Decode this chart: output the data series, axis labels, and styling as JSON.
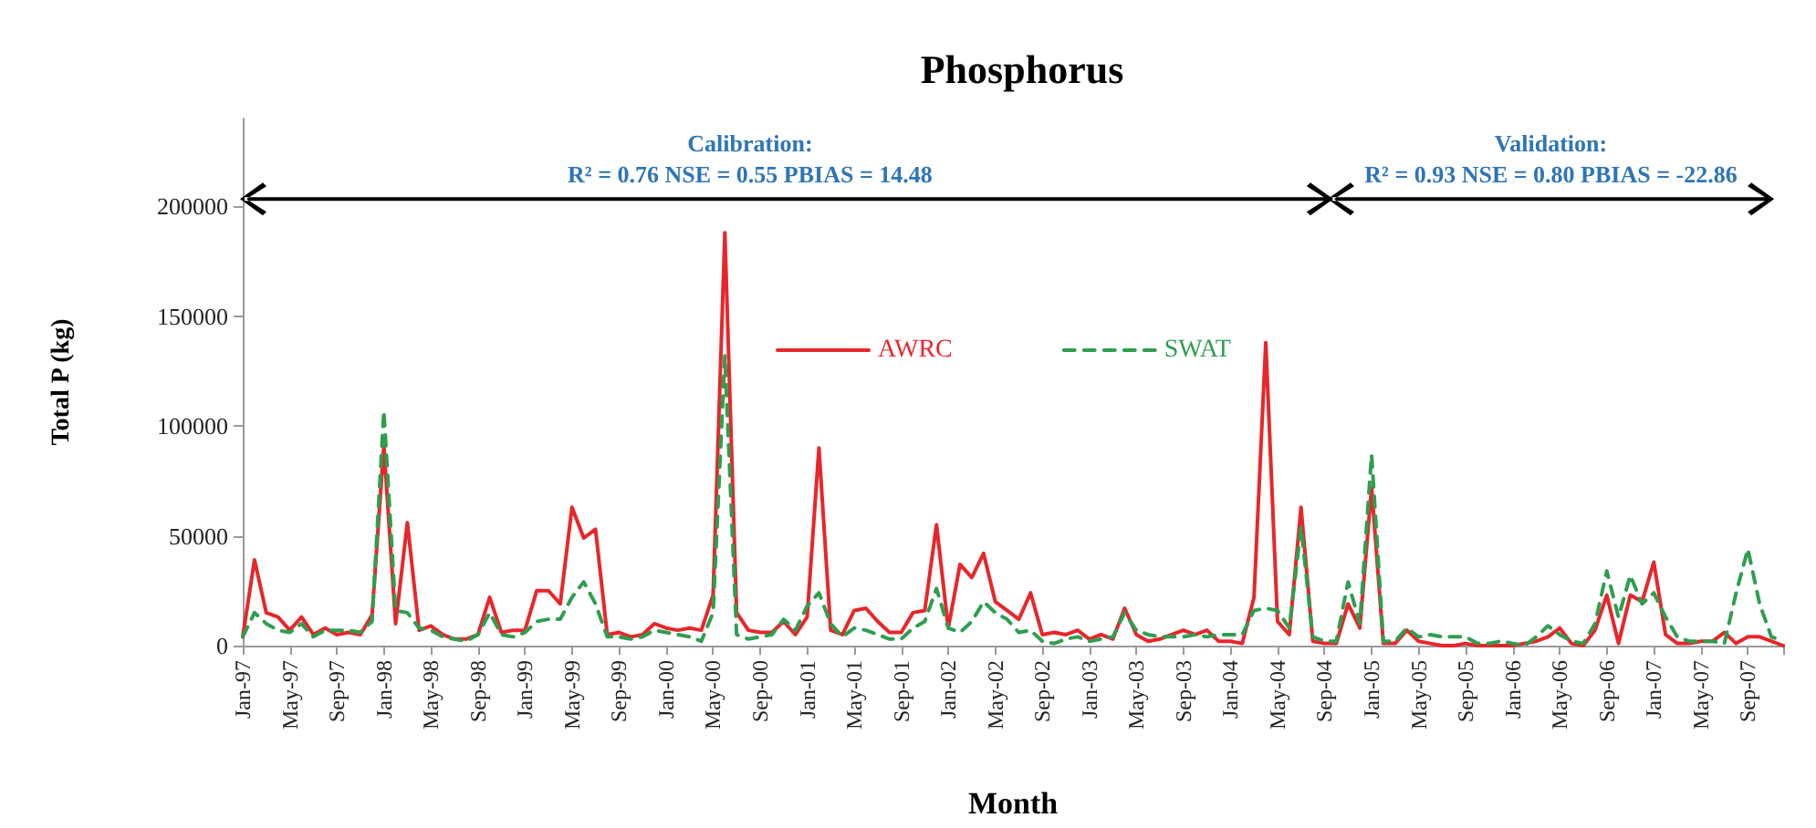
{
  "chart_data": {
    "type": "line",
    "title": "Phosphorus",
    "xlabel": "Month",
    "ylabel": "Total P (kg)",
    "annotations": [
      "Calibration:",
      "R² = 0.76  NSE = 0.55 PBIAS = 14.48",
      "Validation:",
      "R² = 0.93  NSE = 0.80 PBIAS = -22.86"
    ],
    "categories": [
      "Jan-97",
      null,
      null,
      null,
      "May-97",
      null,
      null,
      null,
      "Sep-97",
      null,
      null,
      null,
      "Jan-98",
      null,
      null,
      null,
      "May-98",
      null,
      null,
      null,
      "Sep-98",
      null,
      null,
      null,
      "Jan-99",
      null,
      null,
      null,
      "May-99",
      null,
      null,
      null,
      "Sep-99",
      null,
      null,
      null,
      "Jan-00",
      null,
      null,
      null,
      "May-00",
      null,
      null,
      null,
      "Sep-00",
      null,
      null,
      null,
      "Jan-01",
      null,
      null,
      null,
      "May-01",
      null,
      null,
      null,
      "Sep-01",
      null,
      null,
      null,
      "Jan-02",
      null,
      null,
      null,
      "May-02",
      null,
      null,
      null,
      "Sep-02",
      null,
      null,
      null,
      "Jan-03",
      null,
      null,
      null,
      "May-03",
      null,
      null,
      null,
      "Sep-03",
      null,
      null,
      null,
      "Jan-04",
      null,
      null,
      null,
      "May-04",
      null,
      null,
      null,
      "Sep-04",
      null,
      null,
      null,
      "Jan-05",
      null,
      null,
      null,
      "May-05",
      null,
      null,
      null,
      "Sep-05",
      null,
      null,
      null,
      "Jan-06",
      null,
      null,
      null,
      "May-06",
      null,
      null,
      null,
      "Sep-06",
      null,
      null,
      null,
      "Jan-07",
      null,
      null,
      null,
      "May-07",
      null,
      null,
      null,
      "Sep-07",
      null,
      null,
      null
    ],
    "series": [
      {
        "name": "AWRC",
        "color": "#e8262a",
        "line_style": "solid",
        "values": [
          4000,
          39000,
          15000,
          13000,
          7000,
          13000,
          5000,
          8000,
          5000,
          6000,
          5000,
          14000,
          91000,
          10000,
          56000,
          7000,
          9000,
          5000,
          3000,
          3000,
          5000,
          22000,
          6000,
          7000,
          7000,
          25000,
          25000,
          19000,
          63000,
          49000,
          53000,
          5000,
          6000,
          4000,
          5000,
          10000,
          8000,
          7000,
          8000,
          7000,
          23000,
          188000,
          15000,
          7000,
          6000,
          6000,
          11000,
          5000,
          13000,
          90000,
          7000,
          5000,
          16000,
          17000,
          11000,
          6000,
          6000,
          15000,
          16000,
          55000,
          8000,
          37000,
          31000,
          42000,
          20000,
          16000,
          12000,
          24000,
          5000,
          6000,
          5000,
          7000,
          3000,
          5000,
          3000,
          17000,
          5000,
          2000,
          3000,
          5000,
          7000,
          5000,
          7000,
          2000,
          2000,
          1000,
          22000,
          138000,
          11000,
          5000,
          63000,
          2000,
          1000,
          1000,
          19000,
          8000,
          72000,
          1000,
          1000,
          7000,
          2000,
          1000,
          0,
          0,
          1000,
          0,
          0,
          0,
          0,
          1000,
          2000,
          4000,
          8000,
          1000,
          0,
          7000,
          23000,
          1000,
          23000,
          20000,
          38000,
          5000,
          1000,
          1000,
          2000,
          2000,
          6000,
          1000,
          4000,
          4000,
          2000,
          0
        ]
      },
      {
        "name": "SWAT",
        "color": "#2e9e4f",
        "line_style": "dashed",
        "values": [
          4000,
          15000,
          10000,
          7000,
          6000,
          10000,
          4000,
          7000,
          7000,
          7000,
          6000,
          11000,
          107000,
          16000,
          15000,
          8000,
          7000,
          4000,
          3000,
          2000,
          5000,
          15000,
          5000,
          4000,
          6000,
          11000,
          12000,
          12000,
          22000,
          29000,
          19000,
          4000,
          4000,
          3000,
          4000,
          7000,
          6000,
          5000,
          4000,
          2000,
          15000,
          132000,
          5000,
          3000,
          4000,
          5000,
          12000,
          7000,
          18000,
          24000,
          10000,
          4000,
          8000,
          7000,
          5000,
          3000,
          3000,
          8000,
          11000,
          26000,
          8000,
          6000,
          11000,
          20000,
          15000,
          12000,
          6000,
          7000,
          2000,
          1000,
          3000,
          4000,
          2000,
          3000,
          4000,
          15000,
          7000,
          5000,
          4000,
          4000,
          4000,
          5000,
          4000,
          5000,
          5000,
          5000,
          16000,
          17000,
          16000,
          8000,
          54000,
          4000,
          2000,
          2000,
          29000,
          10000,
          87000,
          2000,
          2000,
          8000,
          4000,
          5000,
          4000,
          4000,
          4000,
          1000,
          1000,
          2000,
          1000,
          0,
          4000,
          9000,
          5000,
          2000,
          1000,
          10000,
          34000,
          13000,
          32000,
          19000,
          24000,
          13000,
          4000,
          2000,
          2000,
          2000,
          1000,
          24000,
          44000,
          19000,
          4000,
          2000
        ]
      }
    ],
    "ylim": [
      0,
      240000
    ],
    "yticks": [
      0,
      50000,
      100000,
      150000,
      200000
    ],
    "grid": false,
    "legend": "top",
    "marker": "none"
  }
}
